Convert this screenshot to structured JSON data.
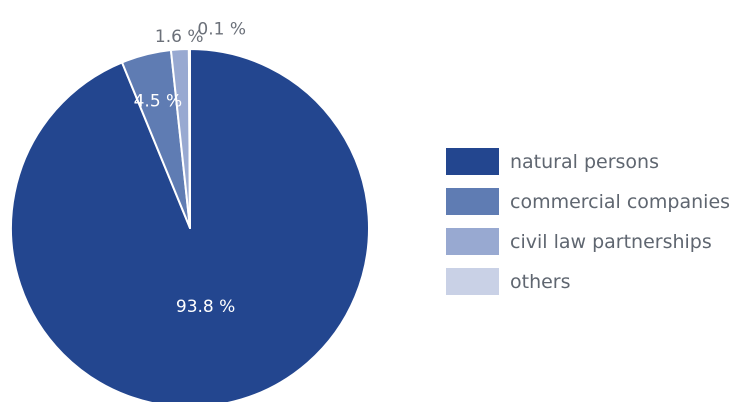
{
  "chart_data": {
    "type": "pie",
    "title": "",
    "legend_position": "right",
    "slices": [
      {
        "name": "natural persons",
        "value": 93.8,
        "label": "93.8 %",
        "color": "#23468f",
        "label_color": "#ffffff"
      },
      {
        "name": "commercial companies",
        "value": 4.5,
        "label": "4.5 %",
        "color": "#5f7cb3",
        "label_color": "#ffffff"
      },
      {
        "name": "civil law partnerships",
        "value": 1.6,
        "label": "1.6 %",
        "color": "#98a9d1",
        "label_color": "#6b7079"
      },
      {
        "name": "others",
        "value": 0.1,
        "label": "0.1 %",
        "color": "#c9d1e6",
        "label_color": "#6b7079"
      }
    ]
  }
}
